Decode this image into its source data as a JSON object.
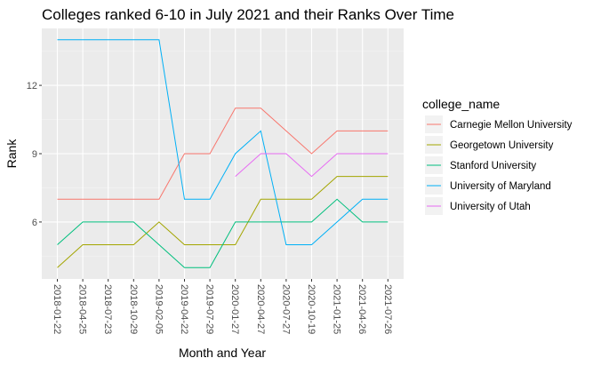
{
  "chart_data": {
    "type": "line",
    "title": "Colleges ranked 6-10 in July 2021 and their Ranks Over Time",
    "xlabel": "Month and Year",
    "ylabel": "Rank",
    "ylim": [
      3.5,
      14.5
    ],
    "yticks": [
      6,
      9,
      12
    ],
    "grid": true,
    "legend_title": "college_name",
    "legend_position": "right",
    "categories": [
      "2018-01-22",
      "2018-04-25",
      "2018-07-23",
      "2018-10-29",
      "2019-02-05",
      "2019-04-22",
      "2019-07-29",
      "2020-01-27",
      "2020-04-27",
      "2020-07-27",
      "2020-10-19",
      "2021-01-25",
      "2021-04-26",
      "2021-07-26"
    ],
    "series": [
      {
        "name": "Carnegie Mellon University",
        "color": "#F8766D",
        "values": [
          7,
          7,
          7,
          7,
          7,
          9,
          9,
          11,
          11,
          10,
          9,
          10,
          10,
          10
        ]
      },
      {
        "name": "Georgetown University",
        "color": "#A3A500",
        "values": [
          4,
          5,
          5,
          5,
          6,
          5,
          5,
          5,
          7,
          7,
          7,
          8,
          8,
          8
        ]
      },
      {
        "name": "Stanford University",
        "color": "#00BF7D",
        "values": [
          5,
          6,
          6,
          6,
          5,
          4,
          4,
          6,
          6,
          6,
          6,
          7,
          6,
          6
        ]
      },
      {
        "name": "University of Maryland",
        "color": "#00B0F6",
        "values": [
          14,
          14,
          14,
          14,
          14,
          7,
          7,
          9,
          10,
          5,
          5,
          6,
          7,
          7
        ]
      },
      {
        "name": "University of Utah",
        "color": "#E76BF3",
        "values": [
          null,
          null,
          null,
          null,
          null,
          null,
          null,
          8,
          9,
          9,
          8,
          9,
          9,
          9
        ]
      }
    ]
  }
}
